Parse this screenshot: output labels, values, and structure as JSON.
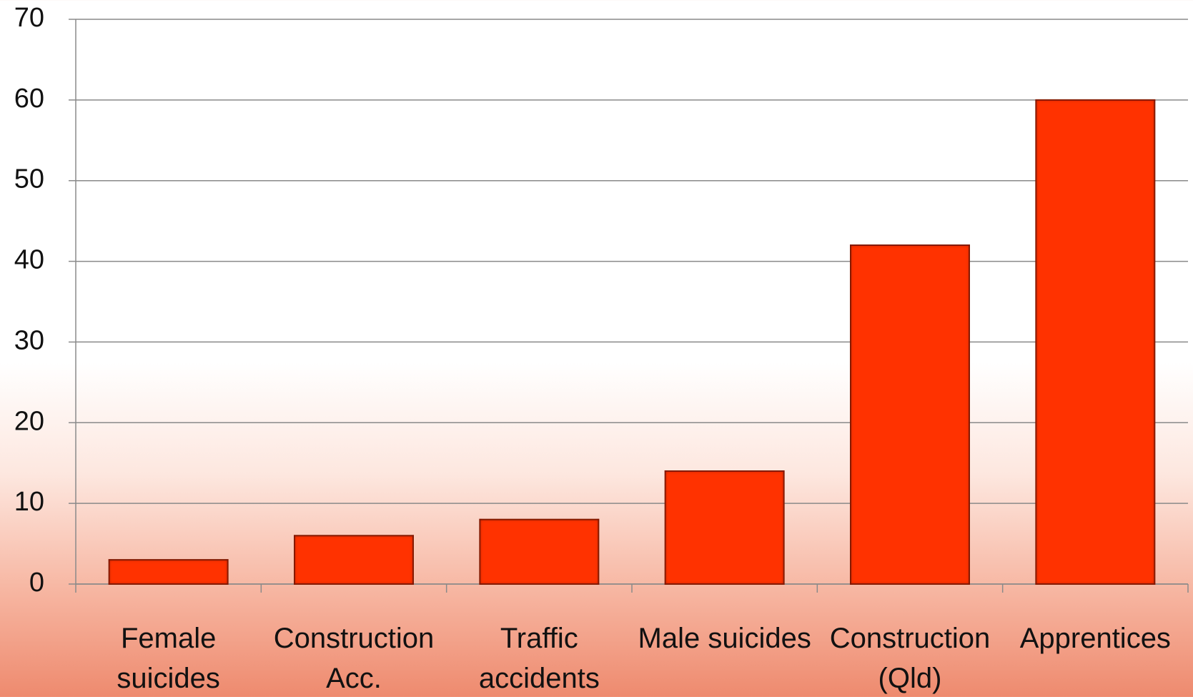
{
  "chart_data": {
    "type": "bar",
    "categories": [
      "Female suicides",
      "Construction Acc.",
      "Traffic accidents",
      "Male suicides",
      "Construction (Qld)",
      "Apprentices"
    ],
    "values": [
      3,
      6,
      8,
      14,
      42,
      60
    ],
    "color": "#ff3300",
    "ylim": [
      0,
      70
    ],
    "yticks": [
      0,
      10,
      20,
      30,
      40,
      50,
      60,
      70
    ],
    "grid": true
  }
}
